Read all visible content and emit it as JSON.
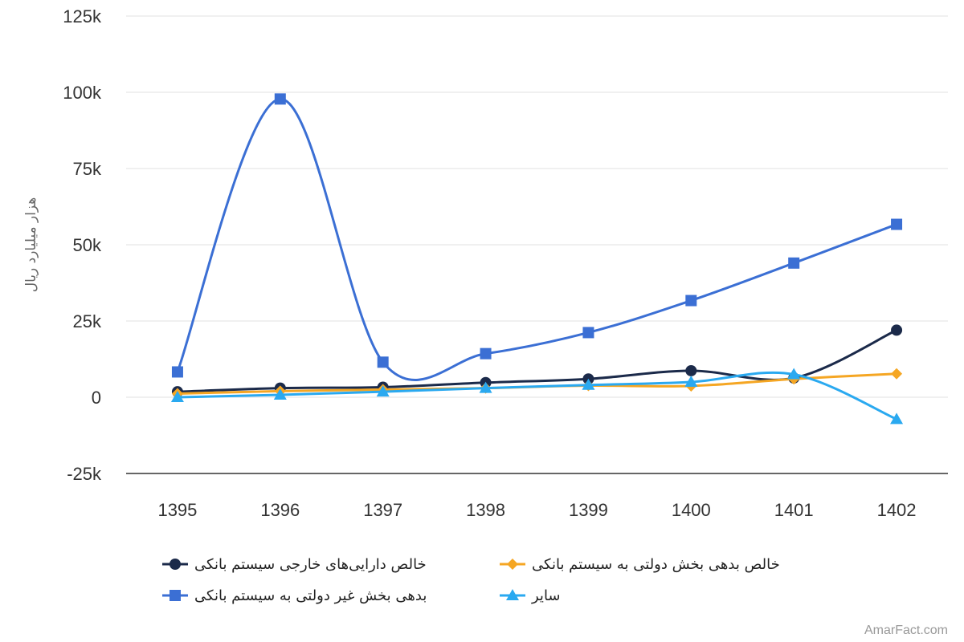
{
  "chart_data": {
    "type": "line",
    "categories": [
      "1395",
      "1396",
      "1397",
      "1398",
      "1399",
      "1400",
      "1401",
      "1402"
    ],
    "ylabel": "هزار میلیارد ریال",
    "ylim": [
      -25000,
      125000
    ],
    "yticks": [
      {
        "value": 125000,
        "label": "125k"
      },
      {
        "value": 100000,
        "label": "100k"
      },
      {
        "value": 75000,
        "label": "75k"
      },
      {
        "value": 50000,
        "label": "50k"
      },
      {
        "value": 25000,
        "label": "25k"
      },
      {
        "value": 0,
        "label": "0"
      },
      {
        "value": -25000,
        "label": "-25k"
      }
    ],
    "grid": true,
    "legend_position": "bottom",
    "series": [
      {
        "name": "خالص دارایی‌های خارجی سیستم بانکی",
        "color": "#1b2a4a",
        "marker": "circle",
        "values": [
          1800,
          3000,
          3300,
          4800,
          6000,
          8700,
          6300,
          22000
        ]
      },
      {
        "name": "خالص بدهی بخش دولتی به سیستم بانکی",
        "color": "#f5a623",
        "marker": "diamond",
        "values": [
          1200,
          2000,
          2500,
          3000,
          3800,
          3700,
          6000,
          7700
        ]
      },
      {
        "name": "بدهی بخش غیر دولتی به سیستم بانکی",
        "color": "#3b6fd4",
        "marker": "square",
        "values": [
          8300,
          97800,
          11500,
          14300,
          21200,
          31700,
          44000,
          56700
        ]
      },
      {
        "name": "سایر",
        "color": "#2aa9f0",
        "marker": "triangle",
        "values": [
          0,
          800,
          1800,
          3000,
          4000,
          5000,
          7500,
          -7200
        ]
      }
    ]
  },
  "credit": "AmarFact.com"
}
